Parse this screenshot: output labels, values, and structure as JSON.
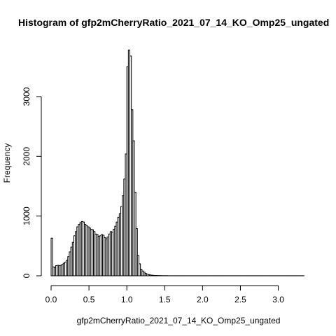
{
  "chart_data": {
    "type": "bar",
    "title": "Histogram of gfp2mCherryRatio_2021_07_14_KO_Omp25_ungated",
    "xlabel": "gfp2mCherryRatio_2021_07_14_KO_Omp25_ungated",
    "ylabel": "Frequency",
    "bin_width": 0.02,
    "bin_start": 0.0,
    "xlim": [
      0.0,
      3.34
    ],
    "ylim": [
      0,
      3800
    ],
    "x_ticks": [
      0.0,
      0.5,
      1.0,
      1.5,
      2.0,
      2.5,
      3.0
    ],
    "x_tick_labels": [
      "0.0",
      "0.5",
      "1.0",
      "1.5",
      "2.0",
      "2.5",
      "3.0"
    ],
    "y_ticks": [
      0,
      1000,
      2000,
      3000
    ],
    "y_tick_labels": [
      "0",
      "1000",
      "2000",
      "3000"
    ],
    "values": [
      630,
      150,
      140,
      170,
      175,
      170,
      175,
      190,
      210,
      230,
      260,
      320,
      400,
      480,
      560,
      670,
      740,
      820,
      860,
      890,
      910,
      900,
      860,
      840,
      820,
      800,
      780,
      770,
      740,
      700,
      690,
      660,
      670,
      690,
      680,
      640,
      620,
      650,
      700,
      740,
      730,
      780,
      830,
      900,
      980,
      1040,
      1160,
      1340,
      1620,
      2040,
      3500,
      3780,
      3680,
      2780,
      2260,
      1400,
      790,
      340,
      200,
      110,
      80,
      60,
      40,
      30,
      20,
      15,
      10,
      8,
      6,
      5,
      4,
      3,
      3,
      2,
      2,
      2,
      2,
      1,
      1,
      1,
      1,
      1,
      1,
      1,
      1,
      1,
      1,
      1,
      1,
      1,
      1,
      1,
      1,
      1,
      1,
      1,
      1,
      1,
      1,
      1,
      1,
      1,
      1,
      1,
      1,
      1,
      1,
      1,
      1,
      1,
      1,
      1,
      1,
      1,
      1,
      1,
      1,
      1,
      1,
      1,
      1,
      1,
      1,
      1,
      1,
      1,
      1,
      1,
      1,
      1,
      1,
      1,
      1,
      1,
      1,
      1,
      1,
      1,
      1,
      1,
      1,
      1,
      1,
      1,
      1,
      1,
      1,
      1,
      1,
      1,
      1,
      1,
      1,
      1,
      1,
      1,
      1,
      1,
      1,
      1,
      1,
      1,
      1,
      1,
      1,
      1,
      1
    ]
  }
}
